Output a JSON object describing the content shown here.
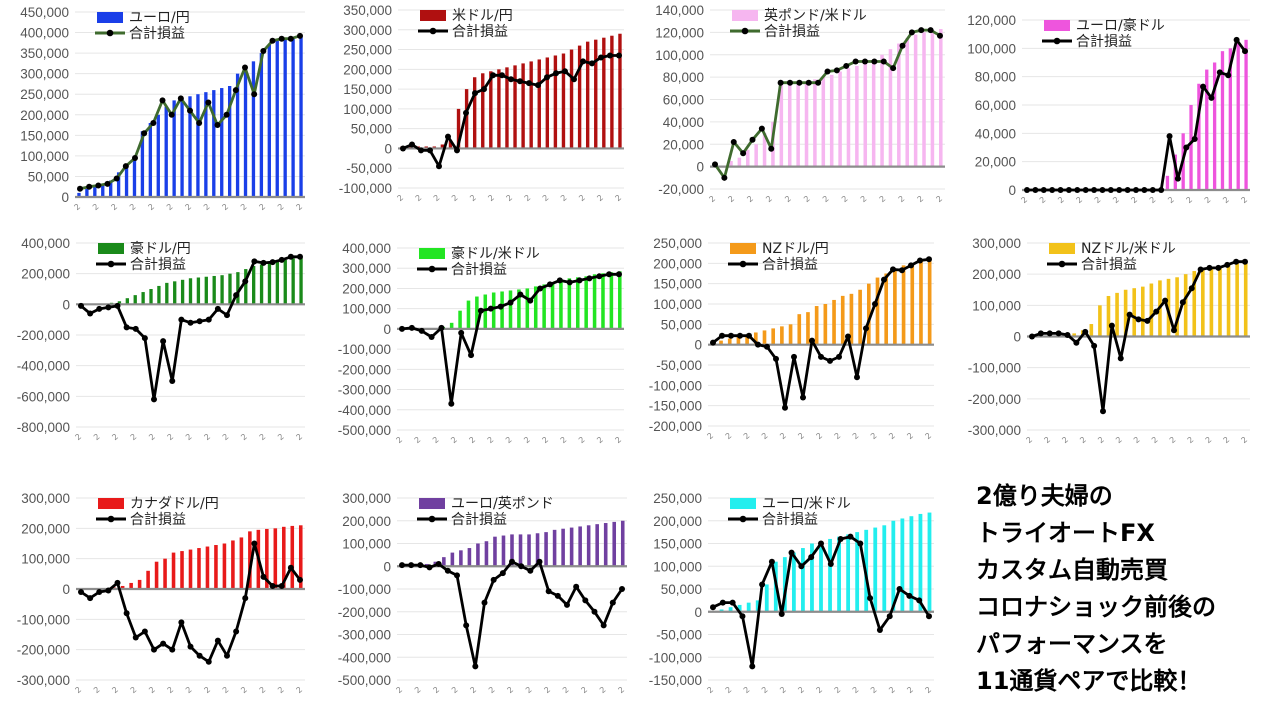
{
  "headline": {
    "lines": [
      "2億り夫婦の",
      "トライオートFX",
      "カスタム自動売買",
      "コロナショック前後の",
      "パフォーマンスを",
      "11通貨ペアで比較！"
    ]
  },
  "chart_data": [
    {
      "type": "bar+line",
      "xtick": "2",
      "legend": {
        "bar": "ユーロ/円",
        "line": "合計損益"
      },
      "colors": {
        "bar": "#1a3fe8",
        "line": "#3f6b2e"
      },
      "ylim": [
        0,
        450000
      ],
      "yticks": [
        0,
        50000,
        100000,
        150000,
        200000,
        250000,
        300000,
        350000,
        400000,
        450000
      ],
      "tick_labels": [
        "0",
        "50,000",
        "100,000",
        "150,000",
        "200,000",
        "250,000",
        "300,000",
        "350,000",
        "400,000",
        "450,000"
      ],
      "bars": [
        10000,
        20000,
        25000,
        30000,
        40000,
        60000,
        80000,
        100000,
        160000,
        180000,
        200000,
        220000,
        235000,
        240000,
        245000,
        250000,
        255000,
        260000,
        265000,
        270000,
        300000,
        310000,
        330000,
        350000,
        370000,
        380000,
        385000,
        388000,
        390000
      ],
      "line": [
        20000,
        25000,
        28000,
        32000,
        45000,
        75000,
        95000,
        155000,
        180000,
        235000,
        200000,
        240000,
        210000,
        180000,
        230000,
        175000,
        200000,
        260000,
        315000,
        250000,
        355000,
        380000,
        385000,
        385000,
        392000
      ]
    },
    {
      "type": "bar+line",
      "xtick": "2",
      "legend": {
        "bar": "米ドル/円",
        "line": "合計損益"
      },
      "colors": {
        "bar": "#b01010",
        "line": "#000000"
      },
      "ylim": [
        -100000,
        350000
      ],
      "yticks": [
        -100000,
        -50000,
        0,
        50000,
        100000,
        150000,
        200000,
        250000,
        300000,
        350000
      ],
      "tick_labels": [
        "-100,000",
        "-50,000",
        "0",
        "50,000",
        "100,000",
        "150,000",
        "200,000",
        "250,000",
        "300,000",
        "350,000"
      ],
      "bars": [
        5000,
        5000,
        5000,
        5000,
        5000,
        10000,
        20000,
        100000,
        150000,
        180000,
        190000,
        195000,
        200000,
        205000,
        210000,
        215000,
        220000,
        225000,
        230000,
        235000,
        240000,
        250000,
        260000,
        270000,
        275000,
        280000,
        285000,
        290000
      ],
      "line": [
        0,
        10000,
        -5000,
        -5000,
        -45000,
        30000,
        -5000,
        90000,
        140000,
        150000,
        185000,
        185000,
        175000,
        170000,
        165000,
        160000,
        180000,
        190000,
        195000,
        175000,
        220000,
        215000,
        230000,
        235000,
        235000
      ]
    },
    {
      "type": "bar+line",
      "xtick": "2",
      "legend": {
        "bar": "英ポンド/米ドル",
        "line": "合計損益"
      },
      "colors": {
        "bar": "#f6b6f0",
        "line": "#3f6b2e"
      },
      "ylim": [
        -20000,
        140000
      ],
      "yticks": [
        -20000,
        0,
        20000,
        40000,
        60000,
        80000,
        100000,
        120000,
        140000
      ],
      "tick_labels": [
        "-20,000",
        "0",
        "20,000",
        "40,000",
        "60,000",
        "80,000",
        "100,000",
        "120,000",
        "140,000"
      ],
      "bars": [
        0,
        0,
        5000,
        8000,
        15000,
        20000,
        30000,
        40000,
        75000,
        75000,
        75000,
        76000,
        78000,
        80000,
        82000,
        85000,
        88000,
        90000,
        92000,
        95000,
        100000,
        105000,
        110000,
        115000,
        118000,
        120000,
        122000,
        123000
      ],
      "line": [
        2000,
        -10000,
        22000,
        12000,
        24000,
        34000,
        16000,
        75000,
        75000,
        75000,
        75000,
        75000,
        85000,
        86000,
        90000,
        94000,
        94000,
        94000,
        94000,
        88000,
        108000,
        120000,
        122000,
        122000,
        117000
      ]
    },
    {
      "type": "bar+line",
      "xtick": "2",
      "legend": {
        "bar": "ユーロ/豪ドル",
        "line": "合計損益"
      },
      "colors": {
        "bar": "#ee55dd",
        "line": "#000000"
      },
      "ylim": [
        0,
        120000
      ],
      "yticks": [
        0,
        20000,
        40000,
        60000,
        80000,
        100000,
        120000
      ],
      "tick_labels": [
        "0",
        "20,000",
        "40,000",
        "60,000",
        "80,000",
        "100,000",
        "120,000"
      ],
      "bars": [
        0,
        0,
        0,
        0,
        0,
        0,
        0,
        0,
        0,
        0,
        0,
        0,
        0,
        0,
        0,
        0,
        0,
        0,
        10000,
        25000,
        40000,
        60000,
        75000,
        85000,
        90000,
        98000,
        100000,
        104000,
        106000
      ],
      "line": [
        0,
        0,
        0,
        0,
        0,
        0,
        0,
        0,
        0,
        0,
        0,
        0,
        0,
        0,
        0,
        0,
        0,
        38000,
        8000,
        30000,
        36000,
        73000,
        65000,
        83000,
        81000,
        106000,
        98000
      ]
    },
    {
      "type": "bar+line",
      "xtick": "2",
      "legend": {
        "bar": "豪ドル/円",
        "line": "合計損益"
      },
      "colors": {
        "bar": "#1a8a1a",
        "line": "#000000"
      },
      "ylim": [
        -800000,
        400000
      ],
      "yticks": [
        -800000,
        -600000,
        -400000,
        -200000,
        0,
        200000,
        400000
      ],
      "tick_labels": [
        "-800,000",
        "-600,000",
        "-400,000",
        "-200,000",
        "0",
        "200,000",
        "400,000"
      ],
      "bars": [
        0,
        0,
        0,
        0,
        10000,
        20000,
        40000,
        60000,
        80000,
        100000,
        120000,
        140000,
        150000,
        160000,
        170000,
        175000,
        180000,
        185000,
        190000,
        200000,
        210000,
        230000,
        250000,
        260000,
        270000,
        280000,
        290000,
        300000,
        305000
      ],
      "line": [
        -10000,
        -60000,
        -30000,
        -20000,
        -10000,
        -150000,
        -160000,
        -220000,
        -620000,
        -240000,
        -500000,
        -100000,
        -120000,
        -110000,
        -100000,
        -30000,
        -70000,
        60000,
        150000,
        280000,
        270000,
        275000,
        290000,
        310000,
        310000
      ]
    },
    {
      "type": "bar+line",
      "xtick": "2",
      "legend": {
        "bar": "豪ドル/米ドル",
        "line": "合計損益"
      },
      "colors": {
        "bar": "#22e522",
        "line": "#000000"
      },
      "ylim": [
        -500000,
        400000
      ],
      "yticks": [
        -500000,
        -400000,
        -300000,
        -200000,
        -100000,
        0,
        100000,
        200000,
        300000,
        400000
      ],
      "tick_labels": [
        "-500,000",
        "-400,000",
        "-300,000",
        "-200,000",
        "-100,000",
        "0",
        "100,000",
        "200,000",
        "300,000",
        "400,000"
      ],
      "bars": [
        0,
        0,
        0,
        0,
        0,
        10000,
        30000,
        90000,
        140000,
        160000,
        170000,
        180000,
        185000,
        190000,
        195000,
        200000,
        210000,
        220000,
        230000,
        240000,
        250000,
        255000,
        260000,
        270000,
        275000,
        280000,
        285000
      ],
      "line": [
        0,
        5000,
        -10000,
        -40000,
        5000,
        -370000,
        -20000,
        -130000,
        90000,
        100000,
        110000,
        130000,
        170000,
        140000,
        200000,
        220000,
        240000,
        230000,
        240000,
        250000,
        260000,
        270000,
        270000
      ]
    },
    {
      "type": "bar+line",
      "xtick": "2",
      "legend": {
        "bar": "NZドル/円",
        "line": "合計損益"
      },
      "colors": {
        "bar": "#f49a1a",
        "line": "#000000"
      },
      "ylim": [
        -200000,
        250000
      ],
      "yticks": [
        -200000,
        -150000,
        -100000,
        -50000,
        0,
        50000,
        100000,
        150000,
        200000,
        250000
      ],
      "tick_labels": [
        "-200,000",
        "-150,000",
        "-100,000",
        "-50,000",
        "0",
        "50,000",
        "100,000",
        "150,000",
        "200,000",
        "250,000"
      ],
      "bars": [
        5000,
        10000,
        15000,
        20000,
        25000,
        30000,
        35000,
        40000,
        45000,
        50000,
        75000,
        80000,
        95000,
        100000,
        110000,
        120000,
        125000,
        135000,
        150000,
        165000,
        175000,
        185000,
        195000,
        200000,
        205000,
        210000
      ],
      "line": [
        5000,
        22000,
        22000,
        22000,
        22000,
        0,
        -5000,
        -35000,
        -155000,
        -30000,
        -130000,
        10000,
        -30000,
        -40000,
        -30000,
        20000,
        -80000,
        40000,
        100000,
        160000,
        185000,
        183000,
        195000,
        207000,
        210000
      ]
    },
    {
      "type": "bar+line",
      "xtick": "2",
      "legend": {
        "bar": "NZドル/米ドル",
        "line": "合計損益"
      },
      "colors": {
        "bar": "#f2c21a",
        "line": "#000000"
      },
      "ylim": [
        -300000,
        300000
      ],
      "yticks": [
        -300000,
        -200000,
        -100000,
        0,
        100000,
        200000,
        300000
      ],
      "tick_labels": [
        "-300,000",
        "-200,000",
        "-100,000",
        "0",
        "100,000",
        "200,000",
        "300,000"
      ],
      "bars": [
        0,
        0,
        0,
        0,
        0,
        10000,
        20000,
        40000,
        100000,
        130000,
        140000,
        150000,
        155000,
        160000,
        170000,
        180000,
        185000,
        190000,
        200000,
        210000,
        215000,
        220000,
        225000,
        230000,
        235000,
        240000
      ],
      "line": [
        0,
        10000,
        10000,
        10000,
        5000,
        -20000,
        15000,
        -30000,
        -240000,
        35000,
        -70000,
        70000,
        55000,
        50000,
        80000,
        115000,
        20000,
        110000,
        155000,
        215000,
        220000,
        220000,
        230000,
        240000,
        240000
      ]
    },
    {
      "type": "bar+line",
      "xtick": "2",
      "legend": {
        "bar": "カナダドル/円",
        "line": "合計損益"
      },
      "colors": {
        "bar": "#e81a1a",
        "line": "#000000"
      },
      "ylim": [
        -300000,
        300000
      ],
      "yticks": [
        -300000,
        -200000,
        -100000,
        0,
        100000,
        200000,
        300000
      ],
      "tick_labels": [
        "-300,000",
        "-200,000",
        "-100,000",
        "0",
        "100,000",
        "200,000",
        "300,000"
      ],
      "bars": [
        0,
        0,
        0,
        0,
        5000,
        10000,
        20000,
        30000,
        60000,
        90000,
        100000,
        120000,
        125000,
        130000,
        135000,
        140000,
        145000,
        150000,
        160000,
        170000,
        190000,
        195000,
        198000,
        200000,
        205000,
        208000,
        210000
      ],
      "line": [
        -10000,
        -30000,
        -10000,
        -5000,
        20000,
        -80000,
        -160000,
        -140000,
        -200000,
        -180000,
        -200000,
        -110000,
        -190000,
        -220000,
        -240000,
        -170000,
        -220000,
        -140000,
        -30000,
        150000,
        40000,
        10000,
        10000,
        70000,
        30000
      ]
    },
    {
      "type": "bar+line",
      "xtick": "2",
      "legend": {
        "bar": "ユーロ/英ポンド",
        "line": "合計損益"
      },
      "colors": {
        "bar": "#7040a0",
        "line": "#000000"
      },
      "ylim": [
        -500000,
        300000
      ],
      "yticks": [
        -500000,
        -400000,
        -300000,
        -200000,
        -100000,
        0,
        100000,
        200000,
        300000
      ],
      "tick_labels": [
        "-500,000",
        "-400,000",
        "-300,000",
        "-200,000",
        "-100,000",
        "0",
        "100,000",
        "200,000",
        "300,000"
      ],
      "bars": [
        0,
        0,
        0,
        10000,
        20000,
        40000,
        60000,
        70000,
        80000,
        100000,
        110000,
        130000,
        135000,
        140000,
        140000,
        140000,
        145000,
        150000,
        160000,
        165000,
        170000,
        175000,
        180000,
        185000,
        190000,
        195000,
        200000
      ],
      "line": [
        5000,
        5000,
        5000,
        -5000,
        10000,
        -20000,
        -40000,
        -260000,
        -440000,
        -160000,
        -60000,
        -30000,
        20000,
        0,
        -20000,
        20000,
        -110000,
        -130000,
        -170000,
        -90000,
        -150000,
        -200000,
        -260000,
        -160000,
        -100000
      ]
    },
    {
      "type": "bar+line",
      "xtick": "2",
      "legend": {
        "bar": "ユーロ/米ドル",
        "line": "合計損益"
      },
      "colors": {
        "bar": "#22eeee",
        "line": "#000000"
      },
      "ylim": [
        -150000,
        250000
      ],
      "yticks": [
        -150000,
        -100000,
        -50000,
        0,
        50000,
        100000,
        150000,
        200000,
        250000
      ],
      "tick_labels": [
        "-150,000",
        "-100,000",
        "-50,000",
        "0",
        "50,000",
        "100,000",
        "150,000",
        "200,000",
        "250,000"
      ],
      "bars": [
        0,
        5000,
        10000,
        15000,
        20000,
        25000,
        60000,
        110000,
        120000,
        130000,
        140000,
        150000,
        155000,
        160000,
        165000,
        170000,
        175000,
        180000,
        185000,
        190000,
        200000,
        205000,
        210000,
        215000,
        218000
      ],
      "line": [
        10000,
        20000,
        20000,
        -10000,
        -120000,
        60000,
        110000,
        -5000,
        130000,
        100000,
        120000,
        150000,
        105000,
        160000,
        165000,
        150000,
        30000,
        -40000,
        -10000,
        50000,
        35000,
        25000,
        -10000
      ]
    }
  ]
}
